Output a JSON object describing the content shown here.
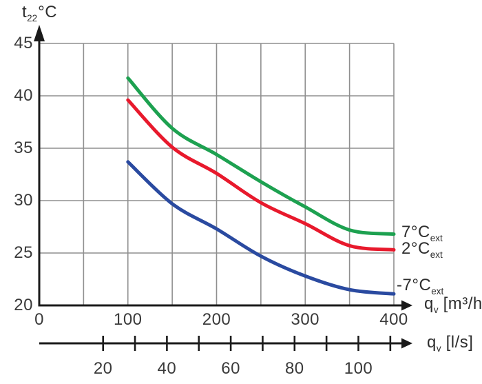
{
  "chart_data": {
    "type": "line",
    "title": "",
    "x": [
      100,
      150,
      200,
      250,
      300,
      350,
      400
    ],
    "series": [
      {
        "name": "7Cext",
        "label_main": "7°C",
        "label_sub": "ext",
        "color": "#1da150",
        "values": [
          41.7,
          36.9,
          34.4,
          31.8,
          29.4,
          27.2,
          26.8
        ]
      },
      {
        "name": "2Cext",
        "label_main": "2°C",
        "label_sub": "ext",
        "color": "#e8192c",
        "values": [
          39.6,
          35.1,
          32.6,
          29.8,
          27.8,
          25.7,
          25.3
        ]
      },
      {
        "name": "-7Cext",
        "label_main": "-7°C",
        "label_sub": "ext",
        "color": "#2a4aa0",
        "values": [
          33.7,
          29.7,
          27.3,
          24.7,
          22.8,
          21.5,
          21.1
        ]
      }
    ],
    "x_axis": {
      "xlim": [
        0,
        400
      ],
      "gridline_step": 50,
      "tick_labels": [
        0,
        100,
        200,
        300,
        400
      ],
      "title_main": "q",
      "title_sub": "v",
      "title_unit": "[m³/h]"
    },
    "y_axis": {
      "ylim": [
        20,
        45
      ],
      "tick_labels": [
        45,
        40,
        35,
        30,
        25,
        20
      ],
      "title_main": "t",
      "title_sub": "22",
      "title_unit": "°C"
    },
    "secondary_x_axis": {
      "scale_factor_to_main": 3.6,
      "ticks": [
        20,
        30,
        40,
        50,
        60,
        70,
        80,
        90,
        100,
        110
      ],
      "labeled_ticks": [
        20,
        40,
        60,
        80,
        100
      ],
      "title_main": "q",
      "title_sub": "v",
      "title_unit": "[l/s]"
    },
    "grid": true,
    "legend_position": "right-of-curve-ends",
    "colors": {
      "grid": "#8f8f8f",
      "axis": "#1a1a1a",
      "text": "#3a3a3a",
      "background": "#ffffff"
    }
  }
}
